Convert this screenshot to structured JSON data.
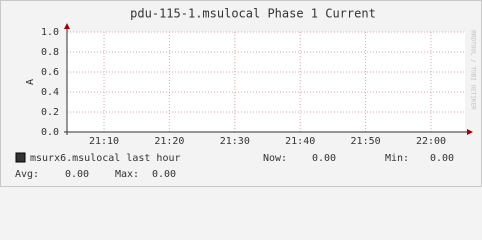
{
  "chart_data": {
    "type": "line",
    "title": "pdu-115-1.msulocal Phase 1 Current",
    "y_label": "A",
    "watermark": "RRDTOOL / TOBI OETIKER",
    "ylim": [
      0,
      1
    ],
    "yticks": [
      {
        "value": 0,
        "label": "0.0"
      },
      {
        "value": 0.2,
        "label": "0.2"
      },
      {
        "value": 0.4,
        "label": "0.4"
      },
      {
        "value": 0.6,
        "label": "0.6"
      },
      {
        "value": 0.8,
        "label": "0.8"
      },
      {
        "value": 1,
        "label": "1.0"
      }
    ],
    "xticks": [
      "21:10",
      "21:20",
      "21:30",
      "21:40",
      "21:50",
      "22:00"
    ],
    "grid": true,
    "series": [
      {
        "name": "msurx6.msulocal last hour",
        "color": "#333333",
        "stats": [
          {
            "label": "Now:",
            "value": 0,
            "value_label": "0.00"
          },
          {
            "label": "Min:",
            "value": 0,
            "value_label": "0.00"
          },
          {
            "label": "Avg:",
            "value": 0,
            "value_label": "0.00"
          },
          {
            "label": "Max:",
            "value": 0,
            "value_label": "0.00"
          }
        ]
      }
    ]
  }
}
